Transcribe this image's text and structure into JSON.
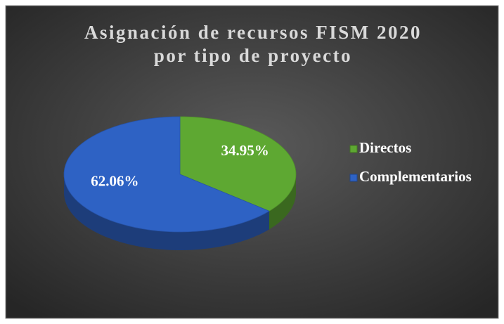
{
  "chart_data": {
    "type": "pie3d",
    "title": [
      "Asignación de recursos FISM  2020",
      "por tipo de proyecto"
    ],
    "categories": [
      "Directos",
      "Complementarios"
    ],
    "values": [
      34.95,
      62.06
    ],
    "value_labels": [
      "34.95%",
      "62.06%"
    ],
    "colors": [
      "#5ea832",
      "#2e62c4"
    ],
    "legend": "right"
  }
}
